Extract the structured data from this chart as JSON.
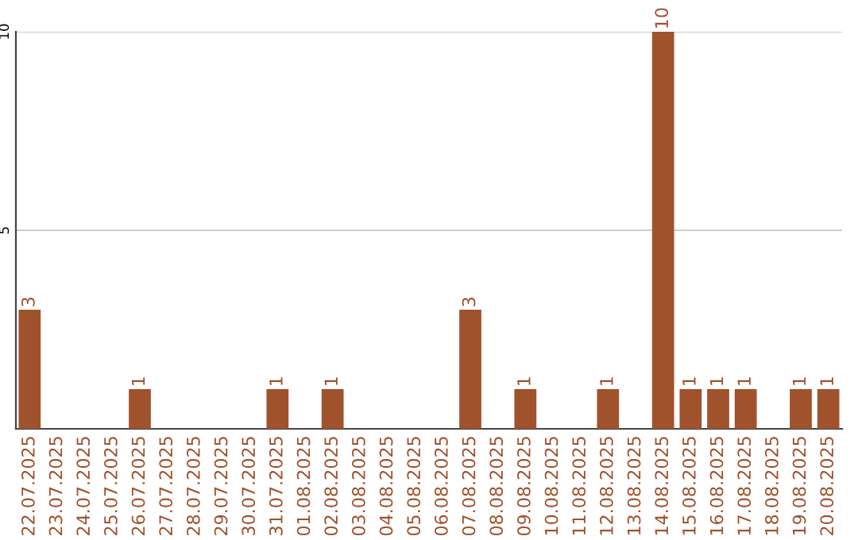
{
  "chart_data": {
    "type": "bar",
    "categories": [
      "22.07.2025",
      "23.07.2025",
      "24.07.2025",
      "25.07.2025",
      "26.07.2025",
      "27.07.2025",
      "28.07.2025",
      "29.07.2025",
      "30.07.2025",
      "31.07.2025",
      "01.08.2025",
      "02.08.2025",
      "03.08.2025",
      "04.08.2025",
      "05.08.2025",
      "06.08.2025",
      "07.08.2025",
      "08.08.2025",
      "09.08.2025",
      "10.08.2025",
      "11.08.2025",
      "12.08.2025",
      "13.08.2025",
      "14.08.2025",
      "15.08.2025",
      "16.08.2025",
      "17.08.2025",
      "18.08.2025",
      "19.08.2025",
      "20.08.2025"
    ],
    "values": [
      3,
      0,
      0,
      0,
      1,
      0,
      0,
      0,
      0,
      1,
      0,
      1,
      0,
      0,
      0,
      0,
      3,
      0,
      1,
      0,
      0,
      1,
      0,
      10,
      1,
      1,
      1,
      0,
      1,
      1
    ],
    "value_labels": [
      "3",
      null,
      null,
      null,
      "1",
      null,
      null,
      null,
      null,
      "1",
      null,
      "1",
      null,
      null,
      null,
      null,
      "3",
      null,
      "1",
      null,
      null,
      "1",
      null,
      "10",
      "1",
      "1",
      "1",
      null,
      "1",
      "1"
    ],
    "color": "#a0522d",
    "ylim": [
      0,
      10
    ],
    "yticks": [
      5,
      10
    ],
    "grid": "y"
  }
}
